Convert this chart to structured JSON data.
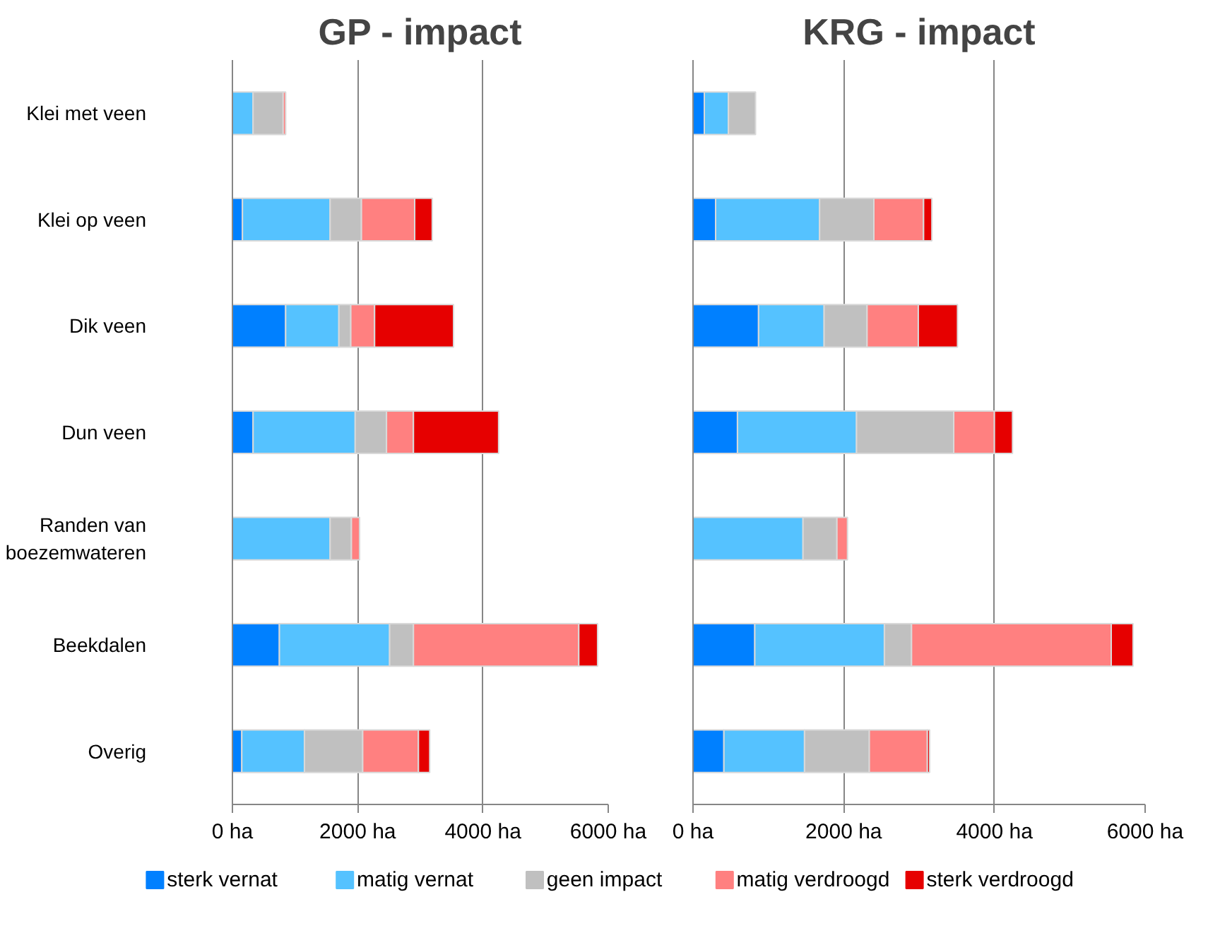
{
  "chart_data": [
    {
      "type": "bar",
      "orientation": "horizontal",
      "stacked": true,
      "title": "GP - impact",
      "categories": [
        "Klei met veen",
        "Klei op veen",
        "Dik veen",
        "Dun veen",
        "Randen van\nboezemwateren",
        "Beekdalen",
        "Overig"
      ],
      "xlim": [
        0,
        6000
      ],
      "xticks": [
        {
          "value": 0,
          "label": "0 ha"
        },
        {
          "value": 2000,
          "label": "2000 ha"
        },
        {
          "value": 4000,
          "label": "4000 ha"
        },
        {
          "value": 6000,
          "label": "6000 ha"
        }
      ],
      "grid": "x",
      "legend": "bottom",
      "series": [
        {
          "name": "sterk vernat",
          "color": "#0080ff",
          "values": [
            0,
            160,
            850,
            330,
            0,
            750,
            150
          ]
        },
        {
          "name": "matig vernat",
          "color": "#55c2ff",
          "values": [
            330,
            1400,
            850,
            1630,
            1560,
            1760,
            1000
          ]
        },
        {
          "name": "geen impact",
          "color": "#c0c0c0",
          "values": [
            480,
            500,
            190,
            500,
            340,
            380,
            930
          ]
        },
        {
          "name": "matig verdroogd",
          "color": "#ff8080",
          "values": [
            40,
            850,
            380,
            430,
            130,
            2640,
            890
          ]
        },
        {
          "name": "sterk verdroogd",
          "color": "#e60000",
          "values": [
            0,
            280,
            1260,
            1360,
            0,
            300,
            180
          ]
        }
      ]
    },
    {
      "type": "bar",
      "orientation": "horizontal",
      "stacked": true,
      "title": "KRG - impact",
      "categories": [
        null,
        null,
        null,
        null,
        null,
        null,
        null
      ],
      "xlim": [
        0,
        6000
      ],
      "xticks": [
        {
          "value": 0,
          "label": "0 ha"
        },
        {
          "value": 2000,
          "label": "2000 ha"
        },
        {
          "value": 4000,
          "label": "4000 ha"
        },
        {
          "value": 6000,
          "label": "6000 ha"
        }
      ],
      "grid": "x",
      "tick_labels": "x",
      "series": [
        {
          "color": "#0080ff",
          "values": [
            150,
            300,
            870,
            590,
            0,
            820,
            410
          ]
        },
        {
          "color": "#55c2ff",
          "values": [
            320,
            1380,
            870,
            1580,
            1460,
            1720,
            1070
          ]
        },
        {
          "color": "#c0c0c0",
          "values": [
            360,
            720,
            570,
            1290,
            450,
            360,
            860
          ]
        },
        {
          "color": "#ff8080",
          "values": [
            0,
            660,
            680,
            540,
            140,
            2650,
            770
          ]
        },
        {
          "color": "#e60000",
          "values": [
            0,
            110,
            520,
            240,
            0,
            290,
            30
          ]
        }
      ]
    }
  ]
}
